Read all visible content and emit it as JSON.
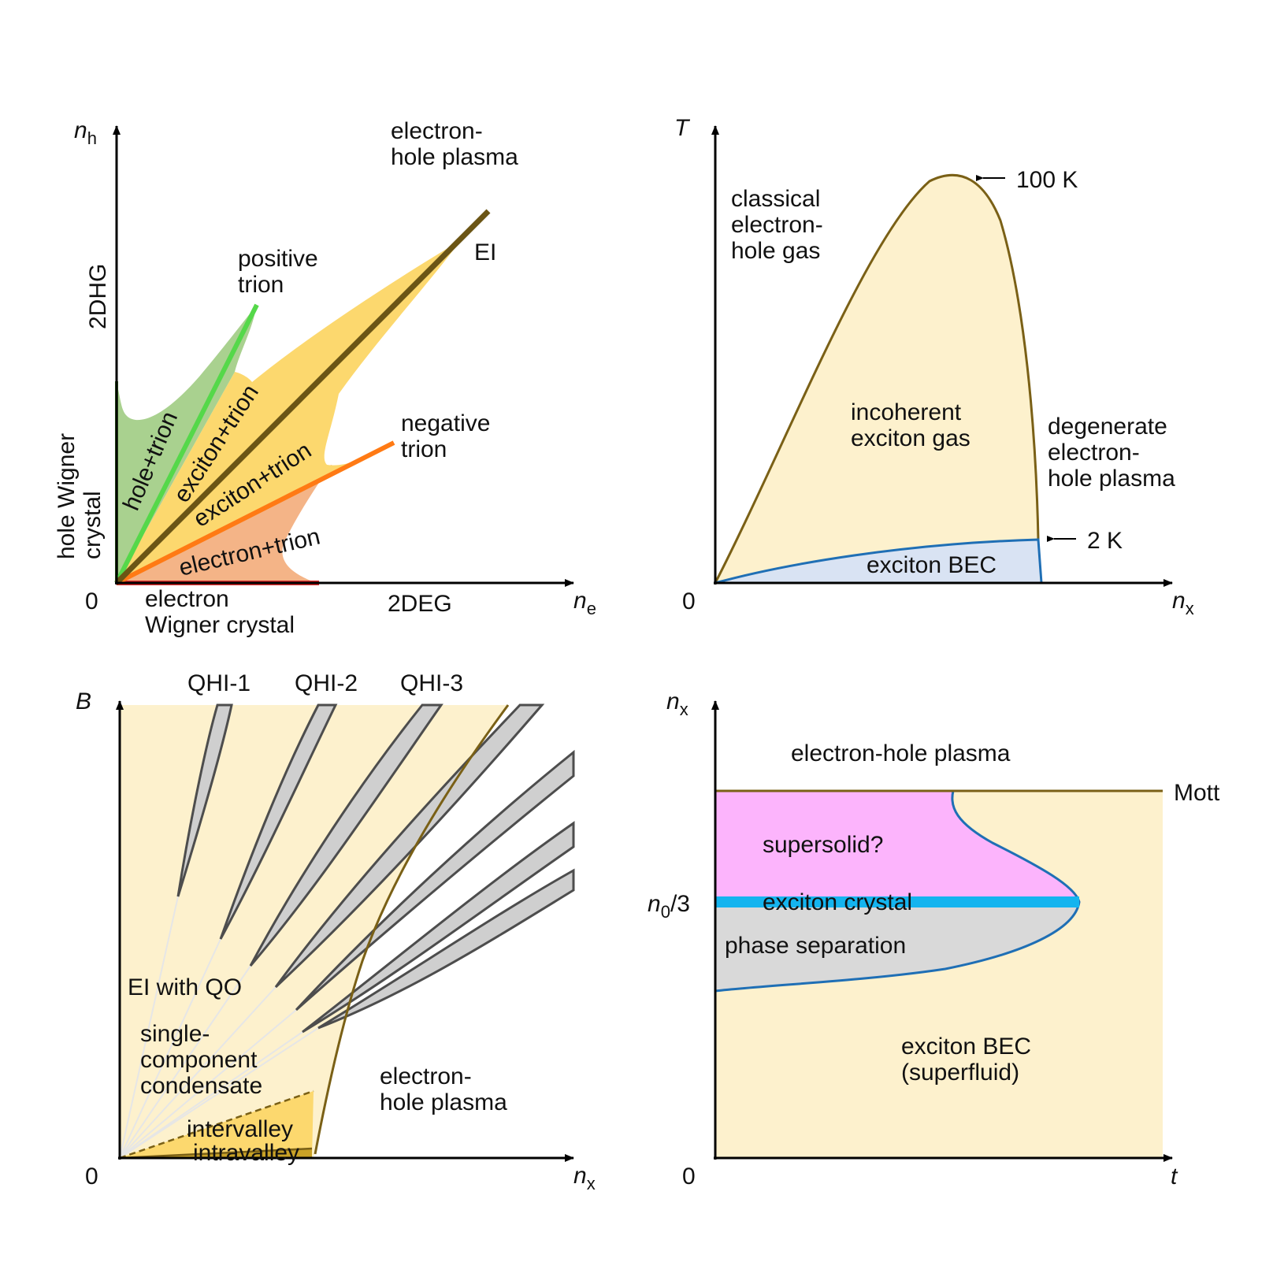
{
  "colors": {
    "light_yellow": "#fdf1cd",
    "gold": "#fcd86e",
    "salmon": "#f4b487",
    "green_fill": "#a9d18f",
    "green_line": "#55d84a",
    "orange_line": "#ff7a14",
    "olive_line": "#6b5515",
    "red_line": "#d42a2a",
    "blue_line": "#1f6fb5",
    "blue_fill": "#d9e3f3",
    "cyan": "#14b4ef",
    "magenta": "#fcb4fc",
    "gray_fill": "#d9d9d9",
    "qhi_gray": "#cfcfcf"
  },
  "panel_a": {
    "y_axis": {
      "italic": "n",
      "sub": "h"
    },
    "x_axis": {
      "italic": "n",
      "sub": "e"
    },
    "origin": "0",
    "plasma": [
      "electron-",
      "hole plasma"
    ],
    "ei": "EI",
    "positive_trion": [
      "positive",
      "trion"
    ],
    "negative_trion": [
      "negative",
      "trion"
    ],
    "hole_wigner": [
      "hole Wigner",
      "crystal"
    ],
    "two_dhg": "2DHG",
    "electron_wigner": [
      "electron",
      "Wigner crystal"
    ],
    "two_deg": "2DEG",
    "hole_trion": "hole+trion",
    "exciton_trion_upper": "exciton+trion",
    "exciton_trion_lower": "exciton+trion",
    "electron_trion": "electron+trion"
  },
  "panel_b": {
    "y_axis": {
      "italic": "T"
    },
    "x_axis": {
      "italic": "n",
      "sub": "x"
    },
    "origin": "0",
    "classical": [
      "classical",
      "electron-",
      "hole gas"
    ],
    "incoherent": [
      "incoherent",
      "exciton gas"
    ],
    "degenerate": [
      "degenerate",
      "electron-",
      "hole plasma"
    ],
    "bec": "exciton BEC",
    "t_high": "100 K",
    "t_low": "2 K"
  },
  "panel_c": {
    "y_axis": {
      "italic": "B"
    },
    "x_axis": {
      "italic": "n",
      "sub": "x"
    },
    "origin": "0",
    "qhi": [
      "QHI-1",
      "QHI-2",
      "QHI-3"
    ],
    "ei_qo": "EI with QO",
    "single": [
      "single-",
      "component",
      "condensate"
    ],
    "plasma": [
      "electron-",
      "hole plasma"
    ],
    "intervalley": "intervalley",
    "intravalley": "intravalley"
  },
  "panel_d": {
    "y_axis": {
      "italic": "n",
      "sub": "x"
    },
    "x_axis": {
      "italic": "t"
    },
    "origin": "0",
    "plasma": "electron-hole plasma",
    "mott": "Mott",
    "supersolid": "supersolid?",
    "crystal": "exciton crystal",
    "phase_sep": "phase separation",
    "bec": [
      "exciton BEC",
      "(superfluid)"
    ],
    "n0_label": {
      "italic": "n",
      "sub": "0",
      "rest": "/3"
    }
  }
}
